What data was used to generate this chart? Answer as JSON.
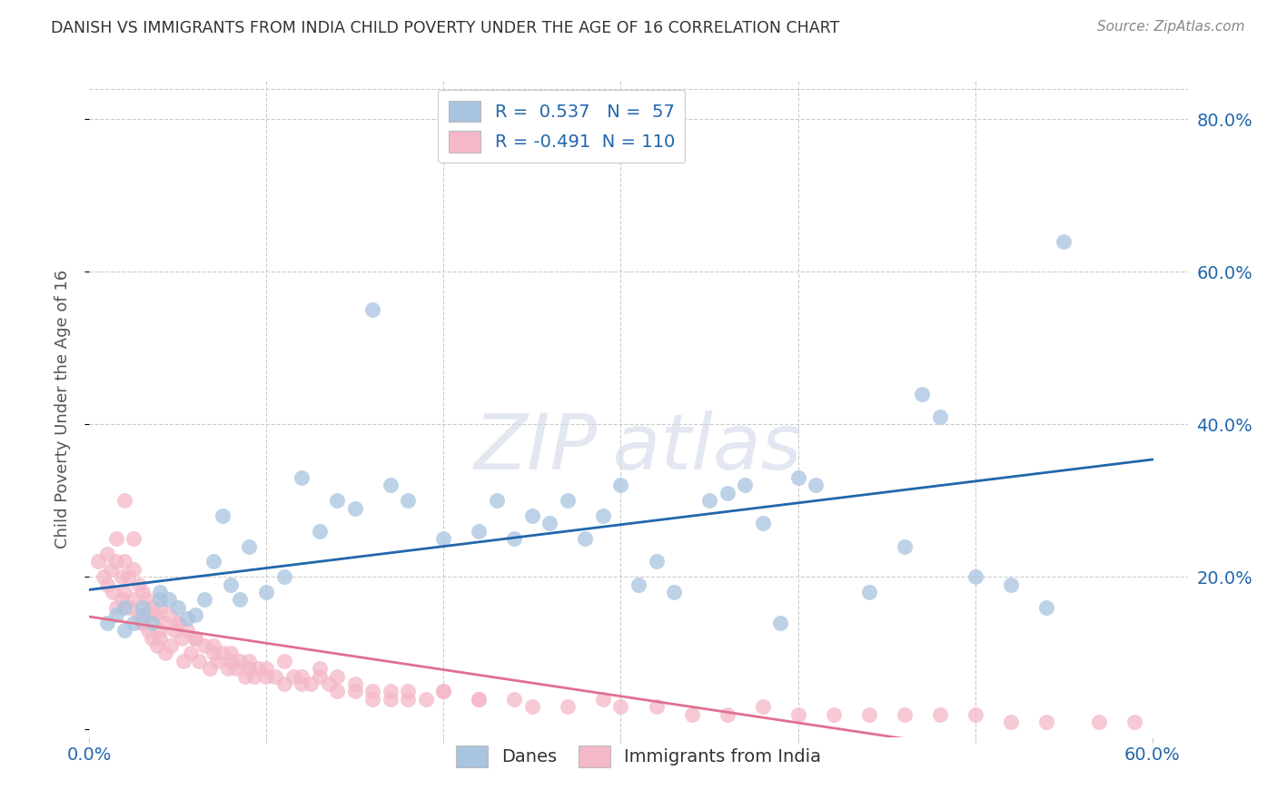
{
  "title": "DANISH VS IMMIGRANTS FROM INDIA CHILD POVERTY UNDER THE AGE OF 16 CORRELATION CHART",
  "source": "Source: ZipAtlas.com",
  "ylabel": "Child Poverty Under the Age of 16",
  "xlim": [
    0.0,
    0.62
  ],
  "ylim": [
    -0.01,
    0.85
  ],
  "danes_color": "#a8c4e0",
  "danes_line_color": "#2166ac",
  "india_color": "#f4b8c8",
  "india_line_color": "#e07090",
  "danes_R": 0.537,
  "danes_N": 57,
  "india_R": -0.491,
  "india_N": 110,
  "legend_danes_label": "Danes",
  "legend_india_label": "Immigrants from India",
  "background_color": "#ffffff",
  "danes_scatter_x": [
    0.01,
    0.015,
    0.02,
    0.02,
    0.025,
    0.03,
    0.03,
    0.035,
    0.04,
    0.04,
    0.045,
    0.05,
    0.055,
    0.06,
    0.065,
    0.07,
    0.075,
    0.08,
    0.085,
    0.09,
    0.1,
    0.11,
    0.12,
    0.13,
    0.14,
    0.15,
    0.16,
    0.17,
    0.18,
    0.2,
    0.22,
    0.23,
    0.24,
    0.25,
    0.26,
    0.27,
    0.28,
    0.29,
    0.3,
    0.31,
    0.32,
    0.33,
    0.35,
    0.36,
    0.37,
    0.38,
    0.39,
    0.4,
    0.41,
    0.44,
    0.46,
    0.47,
    0.48,
    0.5,
    0.52,
    0.54,
    0.55
  ],
  "danes_scatter_y": [
    0.14,
    0.15,
    0.13,
    0.16,
    0.14,
    0.15,
    0.16,
    0.14,
    0.17,
    0.18,
    0.17,
    0.16,
    0.145,
    0.15,
    0.17,
    0.22,
    0.28,
    0.19,
    0.17,
    0.24,
    0.18,
    0.2,
    0.33,
    0.26,
    0.3,
    0.29,
    0.55,
    0.32,
    0.3,
    0.25,
    0.26,
    0.3,
    0.25,
    0.28,
    0.27,
    0.3,
    0.25,
    0.28,
    0.32,
    0.19,
    0.22,
    0.18,
    0.3,
    0.31,
    0.32,
    0.27,
    0.14,
    0.33,
    0.32,
    0.18,
    0.24,
    0.44,
    0.41,
    0.2,
    0.19,
    0.16,
    0.64
  ],
  "india_scatter_x": [
    0.005,
    0.008,
    0.01,
    0.01,
    0.012,
    0.013,
    0.015,
    0.015,
    0.018,
    0.018,
    0.02,
    0.02,
    0.022,
    0.023,
    0.025,
    0.025,
    0.028,
    0.028,
    0.03,
    0.03,
    0.032,
    0.033,
    0.035,
    0.035,
    0.037,
    0.038,
    0.04,
    0.04,
    0.042,
    0.043,
    0.045,
    0.046,
    0.048,
    0.05,
    0.052,
    0.053,
    0.055,
    0.057,
    0.06,
    0.062,
    0.065,
    0.068,
    0.07,
    0.072,
    0.075,
    0.078,
    0.08,
    0.083,
    0.085,
    0.088,
    0.09,
    0.093,
    0.095,
    0.1,
    0.105,
    0.11,
    0.115,
    0.12,
    0.125,
    0.13,
    0.135,
    0.14,
    0.15,
    0.16,
    0.17,
    0.18,
    0.19,
    0.2,
    0.22,
    0.24,
    0.25,
    0.27,
    0.29,
    0.3,
    0.32,
    0.34,
    0.36,
    0.38,
    0.4,
    0.42,
    0.44,
    0.46,
    0.48,
    0.5,
    0.52,
    0.54,
    0.57,
    0.59,
    0.015,
    0.02,
    0.025,
    0.03,
    0.035,
    0.04,
    0.05,
    0.06,
    0.07,
    0.08,
    0.09,
    0.1,
    0.11,
    0.12,
    0.13,
    0.14,
    0.15,
    0.16,
    0.17,
    0.18,
    0.2,
    0.22
  ],
  "india_scatter_y": [
    0.22,
    0.2,
    0.23,
    0.19,
    0.21,
    0.18,
    0.25,
    0.22,
    0.2,
    0.17,
    0.22,
    0.18,
    0.2,
    0.16,
    0.21,
    0.17,
    0.19,
    0.15,
    0.18,
    0.14,
    0.17,
    0.13,
    0.16,
    0.12,
    0.15,
    0.11,
    0.16,
    0.12,
    0.14,
    0.1,
    0.15,
    0.11,
    0.13,
    0.14,
    0.12,
    0.09,
    0.13,
    0.1,
    0.12,
    0.09,
    0.11,
    0.08,
    0.1,
    0.09,
    0.1,
    0.08,
    0.09,
    0.08,
    0.09,
    0.07,
    0.08,
    0.07,
    0.08,
    0.07,
    0.07,
    0.06,
    0.07,
    0.06,
    0.06,
    0.07,
    0.06,
    0.05,
    0.05,
    0.04,
    0.05,
    0.04,
    0.04,
    0.05,
    0.04,
    0.04,
    0.03,
    0.03,
    0.04,
    0.03,
    0.03,
    0.02,
    0.02,
    0.03,
    0.02,
    0.02,
    0.02,
    0.02,
    0.02,
    0.02,
    0.01,
    0.01,
    0.01,
    0.01,
    0.16,
    0.3,
    0.25,
    0.14,
    0.15,
    0.13,
    0.14,
    0.12,
    0.11,
    0.1,
    0.09,
    0.08,
    0.09,
    0.07,
    0.08,
    0.07,
    0.06,
    0.05,
    0.04,
    0.05,
    0.05,
    0.04
  ]
}
